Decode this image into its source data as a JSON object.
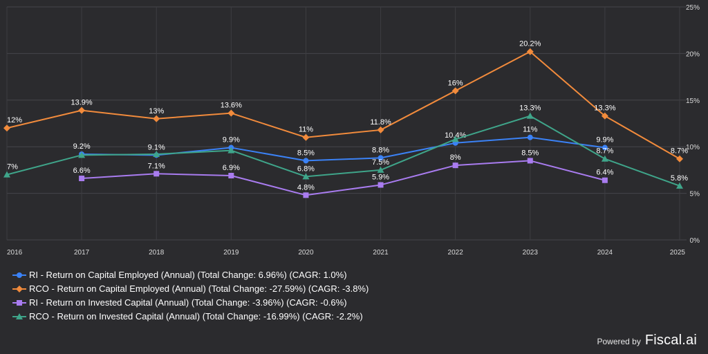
{
  "chart_data": {
    "type": "line",
    "categories": [
      "2016",
      "2017",
      "2018",
      "2019",
      "2020",
      "2021",
      "2022",
      "2023",
      "2024",
      "2025"
    ],
    "ylim": [
      0,
      25
    ],
    "yticks": [
      0,
      5,
      10,
      15,
      20,
      25
    ],
    "ytick_labels": [
      "0%",
      "5%",
      "10%",
      "15%",
      "20%",
      "25%"
    ],
    "grid": true,
    "series": [
      {
        "name": "RI - Return on Capital Employed (Annual) (Total Change: 6.96%) (CAGR: 1.0%)",
        "color": "#3b82f6",
        "marker": "circle",
        "values": [
          null,
          9.2,
          9.1,
          9.9,
          8.5,
          8.8,
          10.4,
          11,
          9.9,
          null
        ],
        "labels": [
          null,
          "9.2%",
          "9.1%",
          "9.9%",
          "8.5%",
          "8.8%",
          "10.4%",
          "11%",
          "9.9%",
          null
        ]
      },
      {
        "name": "RCO - Return on Capital Employed (Annual) (Total Change: -27.59%) (CAGR: -3.8%)",
        "color": "#f28b3c",
        "marker": "diamond",
        "values": [
          12,
          13.9,
          13,
          13.6,
          11,
          11.8,
          16,
          20.2,
          13.3,
          8.7
        ],
        "labels": [
          "12%",
          "13.9%",
          "13%",
          "13.6%",
          "11%",
          "11.8%",
          "16%",
          "20.2%",
          "13.3%",
          "8.7%"
        ]
      },
      {
        "name": "RI - Return on Invested Capital (Annual) (Total Change: -3.96%) (CAGR: -0.6%)",
        "color": "#a97cf0",
        "marker": "square",
        "values": [
          null,
          6.6,
          7.1,
          6.9,
          4.8,
          5.9,
          8,
          8.5,
          6.4,
          null
        ],
        "labels": [
          null,
          "6.6%",
          "7.1%",
          "6.9%",
          "4.8%",
          "5.9%",
          "8%",
          "8.5%",
          "6.4%",
          null
        ]
      },
      {
        "name": "RCO - Return on Invested Capital (Annual) (Total Change: -16.99%) (CAGR: -2.2%)",
        "color": "#3fa58a",
        "marker": "triangle",
        "values": [
          7,
          9.1,
          9.2,
          9.6,
          6.8,
          7.5,
          10.8,
          13.3,
          8.7,
          5.8
        ],
        "labels": [
          "7%",
          null,
          null,
          null,
          "6.8%",
          "7.5%",
          null,
          "13.3%",
          "8.7%",
          "5.8%"
        ]
      }
    ]
  },
  "branding": {
    "powered_by": "Powered by",
    "brand": "Fiscal.ai"
  }
}
